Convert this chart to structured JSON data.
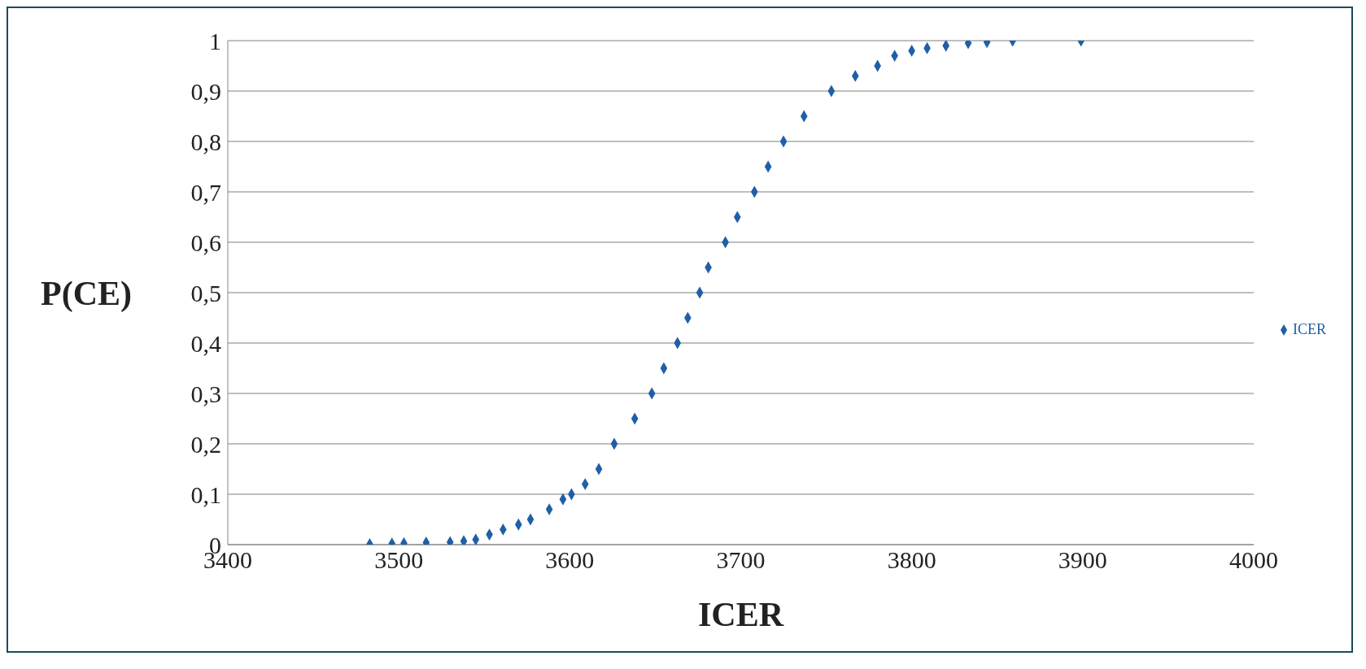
{
  "chart_data": {
    "type": "scatter",
    "xlabel": "ICER",
    "ylabel": "P(CE)",
    "x": [
      3483,
      3496,
      3503,
      3516,
      3530,
      3538,
      3545,
      3553,
      3561,
      3570,
      3577,
      3588,
      3596,
      3601,
      3609,
      3617,
      3626,
      3638,
      3648,
      3655,
      3663,
      3669,
      3676,
      3681,
      3691,
      3698,
      3708,
      3716,
      3725,
      3737,
      3753,
      3767,
      3780,
      3790,
      3800,
      3809,
      3820,
      3833,
      3844,
      3859,
      3899
    ],
    "series": [
      {
        "name": "ICER",
        "color": "#1f5fa8",
        "values": [
          0.001,
          0.002,
          0.003,
          0.004,
          0.005,
          0.007,
          0.01,
          0.02,
          0.03,
          0.04,
          0.05,
          0.07,
          0.09,
          0.1,
          0.12,
          0.15,
          0.2,
          0.25,
          0.3,
          0.35,
          0.4,
          0.45,
          0.5,
          0.55,
          0.6,
          0.65,
          0.7,
          0.75,
          0.8,
          0.85,
          0.9,
          0.93,
          0.95,
          0.97,
          0.98,
          0.985,
          0.99,
          0.995,
          0.997,
          1,
          1
        ]
      }
    ],
    "xlim": [
      3400,
      4000
    ],
    "xticks": [
      3400,
      3500,
      3600,
      3700,
      3800,
      3900,
      4000
    ],
    "ylim": [
      0,
      1
    ],
    "yticks": [
      0,
      {
        "value": 0.1,
        "label": "0,1"
      },
      {
        "value": 0.2,
        "label": "0,2"
      },
      {
        "value": 0.3,
        "label": "0,3"
      },
      {
        "value": 0.4,
        "label": "0,4"
      },
      {
        "value": 0.5,
        "label": "0,5"
      },
      {
        "value": 0.6,
        "label": "0,6"
      },
      {
        "value": 0.7,
        "label": "0,7"
      },
      {
        "value": 0.8,
        "label": "0,8"
      },
      {
        "value": 0.9,
        "label": "0,9"
      },
      1
    ],
    "grid": "y",
    "legend": "right",
    "marker": "diamond"
  }
}
